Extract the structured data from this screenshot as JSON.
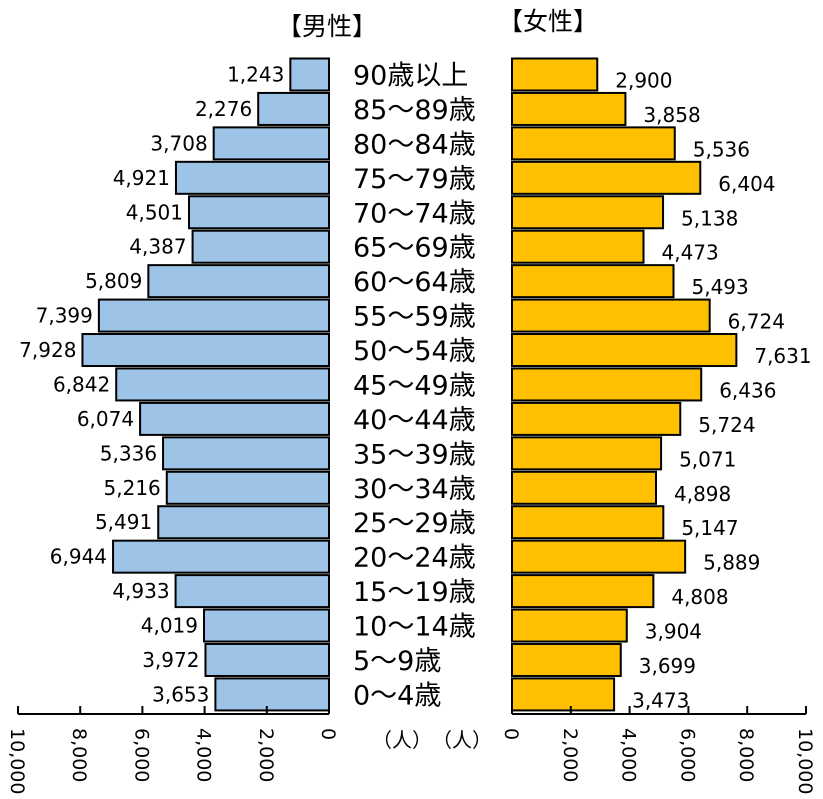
{
  "chart_data": {
    "type": "bar",
    "subtype": "population-pyramid",
    "categories": [
      "90歳以上",
      "85～89歳",
      "80～84歳",
      "75～79歳",
      "70～74歳",
      "65～69歳",
      "60～64歳",
      "55～59歳",
      "50～54歳",
      "45～49歳",
      "40～44歳",
      "35～39歳",
      "30～34歳",
      "25～29歳",
      "20～24歳",
      "15～19歳",
      "10～14歳",
      "5～9歳",
      "0～4歳"
    ],
    "series": [
      {
        "name": "【男性】",
        "side": "left",
        "color": "#9dc3e6",
        "values": [
          1243,
          2276,
          3708,
          4921,
          4501,
          4387,
          5809,
          7399,
          7928,
          6842,
          6074,
          5336,
          5216,
          5491,
          6944,
          4933,
          4019,
          3972,
          3653
        ],
        "value_labels": [
          "1,243",
          "2,276",
          "3,708",
          "4,921",
          "4,501",
          "4,387",
          "5,809",
          "7,399",
          "7,928",
          "6,842",
          "6,074",
          "5,336",
          "5,216",
          "5,491",
          "6,944",
          "4,933",
          "4,019",
          "3,972",
          "3,653"
        ]
      },
      {
        "name": "【女性】",
        "side": "right",
        "color": "#ffc000",
        "values": [
          2900,
          3858,
          5536,
          6404,
          5138,
          4473,
          5493,
          6724,
          7631,
          6436,
          5724,
          5071,
          4898,
          5147,
          5889,
          4808,
          3904,
          3699,
          3473
        ],
        "value_labels": [
          "2,900",
          "3,858",
          "5,536",
          "6,404",
          "5,138",
          "4,473",
          "5,493",
          "6,724",
          "7,631",
          "6,436",
          "5,724",
          "5,071",
          "4,898",
          "5,147",
          "5,889",
          "4,808",
          "3,904",
          "3,699",
          "3,473"
        ]
      }
    ],
    "xlim": [
      0,
      10000
    ],
    "x_ticks": [
      0,
      2000,
      4000,
      6000,
      8000,
      10000
    ],
    "left_tick_labels": [
      "0",
      "2,000",
      "4,000",
      "6,000",
      "8,000",
      "10,000"
    ],
    "right_tick_labels": [
      "0",
      "2,000",
      "4,000",
      "6,000",
      "8,000",
      "10,000"
    ],
    "xlabel_left": "（人）",
    "xlabel_right": "（人）",
    "grid": false
  }
}
